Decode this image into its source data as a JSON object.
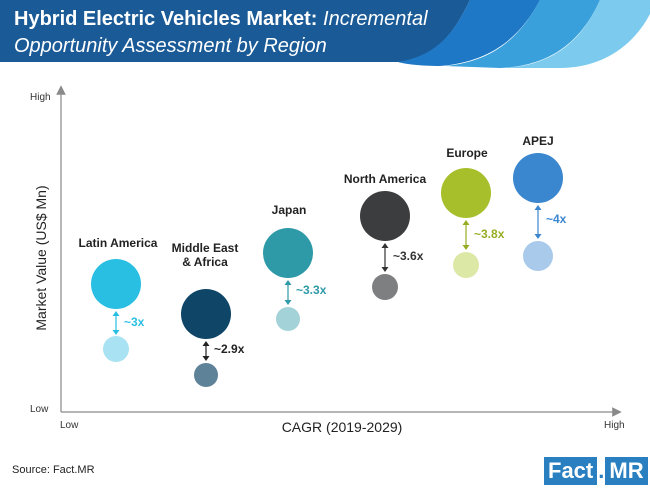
{
  "header": {
    "title_bold": "Hybrid Electric Vehicles Market:",
    "title_italic": "Incremental",
    "title_line2": "Opportunity Assessment by Region"
  },
  "colors": {
    "banner": "#1a5a96",
    "banner_stripe1": "#1f78c6",
    "banner_stripe2": "#39a0db",
    "banner_stripe3": "#7ccbee"
  },
  "chart_data": {
    "type": "bubble",
    "xlabel": "CAGR (2019-2029)",
    "ylabel": "Market Value (US$ Mn)",
    "x_low": "Low",
    "x_high": "High",
    "y_low": "Low",
    "y_high": "High",
    "series": [
      {
        "name": "Latin America",
        "label_lines": [
          "Latin America"
        ],
        "multiplier": "~3x",
        "color_large": "#29bfe3",
        "color_small": "#a8e2f3",
        "multiplier_color": "#29bfe3"
      },
      {
        "name": "Middle East & Africa",
        "label_lines": [
          "Middle East",
          "& Africa"
        ],
        "multiplier": "~2.9x",
        "color_large": "#0f4566",
        "color_small": "#5e8298",
        "multiplier_color": "#222222"
      },
      {
        "name": "Japan",
        "label_lines": [
          "Japan"
        ],
        "multiplier": "~3.3x",
        "color_large": "#2e9aa8",
        "color_small": "#a3d2d8",
        "multiplier_color": "#2e9aa8"
      },
      {
        "name": "North America",
        "label_lines": [
          "North America"
        ],
        "multiplier": "~3.6x",
        "color_large": "#3b3d3f",
        "color_small": "#7d7f81",
        "multiplier_color": "#333333"
      },
      {
        "name": "Europe",
        "label_lines": [
          "Europe"
        ],
        "multiplier": "~3.8x",
        "color_large": "#a8bf2c",
        "color_small": "#dce8a6",
        "multiplier_color": "#97ad24"
      },
      {
        "name": "APEJ",
        "label_lines": [
          "APEJ"
        ],
        "multiplier": "~4x",
        "color_large": "#3a86cf",
        "color_small": "#a9caeb",
        "multiplier_color": "#3a86cf"
      }
    ]
  },
  "footer": {
    "source": "Source: Fact.MR",
    "logo_fact": "Fact",
    "logo_dot": ".",
    "logo_mr": "MR"
  }
}
